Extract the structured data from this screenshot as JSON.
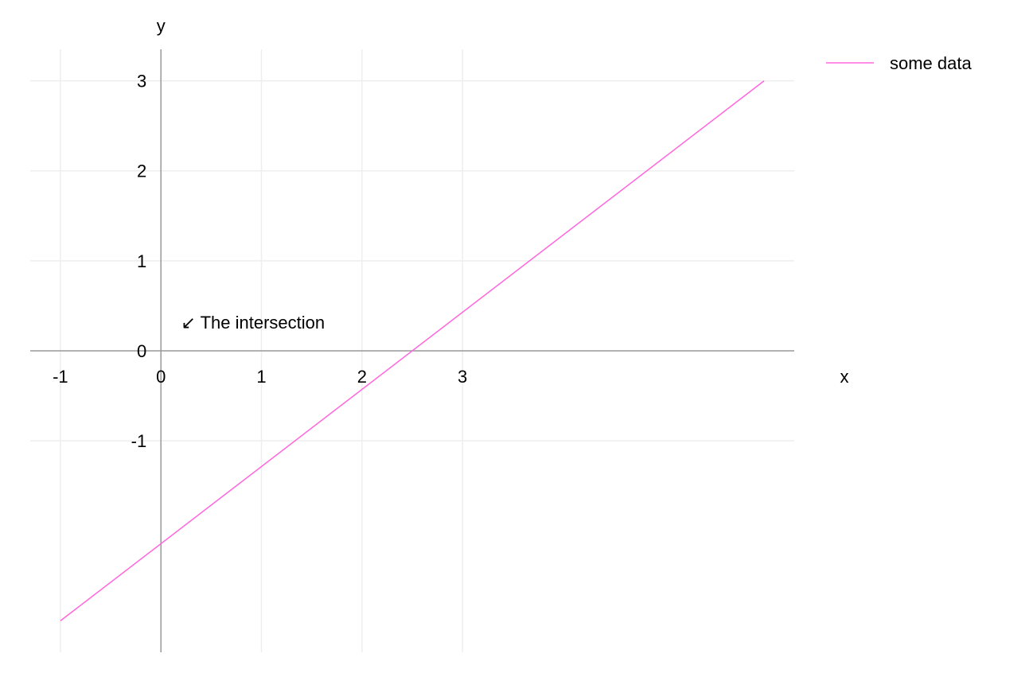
{
  "chart_data": {
    "type": "line",
    "xlabel": "x",
    "ylabel": "y",
    "xlim": [
      -1.3,
      6.3
    ],
    "ylim": [
      -3.35,
      3.35
    ],
    "x_ticks": [
      -1,
      0,
      1,
      2,
      3
    ],
    "y_ticks": [
      -1,
      0,
      1,
      2,
      3
    ],
    "grid": true,
    "legend_position": "top-right",
    "series": [
      {
        "name": "some data",
        "color": "#ff66dd",
        "x": [
          -1,
          6
        ],
        "y": [
          -3,
          3
        ]
      }
    ],
    "annotations": [
      {
        "text": "↙ The intersection",
        "x": 0.2,
        "y": 0.32
      }
    ]
  }
}
